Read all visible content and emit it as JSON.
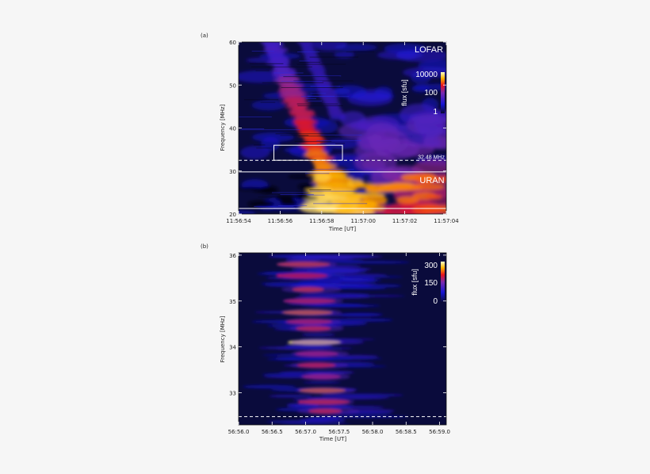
{
  "chart_data": [
    {
      "type": "heatmap",
      "panel_label": "(a)",
      "xlabel": "Time [UT]",
      "ylabel": "Frequency [MHz]",
      "x_ticks": [
        "11:56:54",
        "11:56:56",
        "11:56:58",
        "11:57:00",
        "11:57:02",
        "11:57:04"
      ],
      "x_tick_values": [
        0,
        2,
        4,
        6,
        8,
        10
      ],
      "xlim": [
        0,
        10
      ],
      "y_ticks": [
        "20",
        "30",
        "40",
        "50",
        "60"
      ],
      "y_tick_values": [
        20,
        30,
        40,
        50,
        60
      ],
      "ylim": [
        20,
        60
      ],
      "instrument_labels": {
        "upper": "LOFAR",
        "lower": "URAN"
      },
      "instrument_boundaries_mhz": [
        29.8,
        21.3
      ],
      "dashed_line_label": "32.48 MHz",
      "dashed_line_mhz": 32.48,
      "selection_box": {
        "x_range": [
          1.7,
          5.0
        ],
        "y_range": [
          32.5,
          36.0
        ]
      },
      "colorbar": {
        "label": "flux [sfu]",
        "tick_labels": [
          "10000",
          "100",
          "1"
        ],
        "scale": "log"
      }
    },
    {
      "type": "heatmap",
      "panel_label": "(b)",
      "xlabel": "Time [UT]",
      "ylabel": "Frequency [MHz]",
      "x_ticks": [
        "56:56.0",
        "56:56.5",
        "56:57.0",
        "56:57.5",
        "56:58.0",
        "56:58.5",
        "56:59.0"
      ],
      "x_tick_values": [
        56.0,
        56.5,
        57.0,
        57.5,
        58.0,
        58.5,
        59.0
      ],
      "xlim": [
        56.0,
        59.1
      ],
      "y_ticks": [
        "33",
        "34",
        "35",
        "36"
      ],
      "y_tick_values": [
        33,
        34,
        35,
        36
      ],
      "ylim": [
        32.3,
        36.05
      ],
      "dashed_line_mhz": 32.48,
      "colorbar": {
        "label": "flux [sfu]",
        "tick_labels": [
          "300",
          "150",
          "0"
        ],
        "scale": "linear"
      }
    }
  ]
}
